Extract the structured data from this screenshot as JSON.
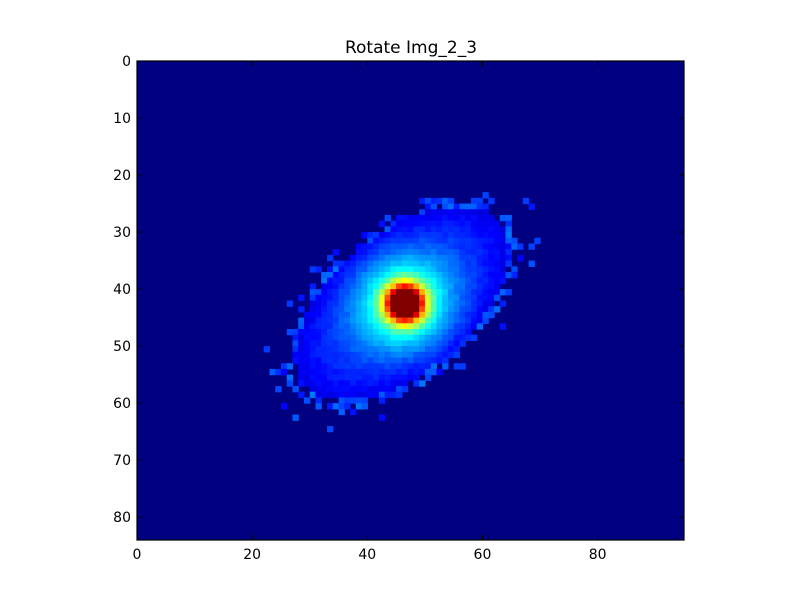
{
  "chart_data": {
    "type": "heatmap",
    "title": "Rotate Img_2_3",
    "xlabel": "",
    "ylabel": "",
    "colormap": "jet",
    "grid": false,
    "x_range": [
      0,
      95
    ],
    "y_range": [
      84,
      0
    ],
    "x_ticks": [
      0,
      20,
      40,
      60,
      80
    ],
    "y_ticks": [
      0,
      10,
      20,
      30,
      40,
      50,
      60,
      70,
      80
    ],
    "background_value": 0.0,
    "distribution": {
      "shape": "rotated elliptical gaussian blob",
      "center": [
        46,
        42.5
      ],
      "axis_direction": [
        0.7,
        -0.6
      ],
      "major_sigma": 22,
      "minor_sigma": 12,
      "peak_center": [
        46.5,
        42.5
      ],
      "peak_sigma": 2.2,
      "peak_value": 1.0,
      "body_value": 0.22
    }
  }
}
